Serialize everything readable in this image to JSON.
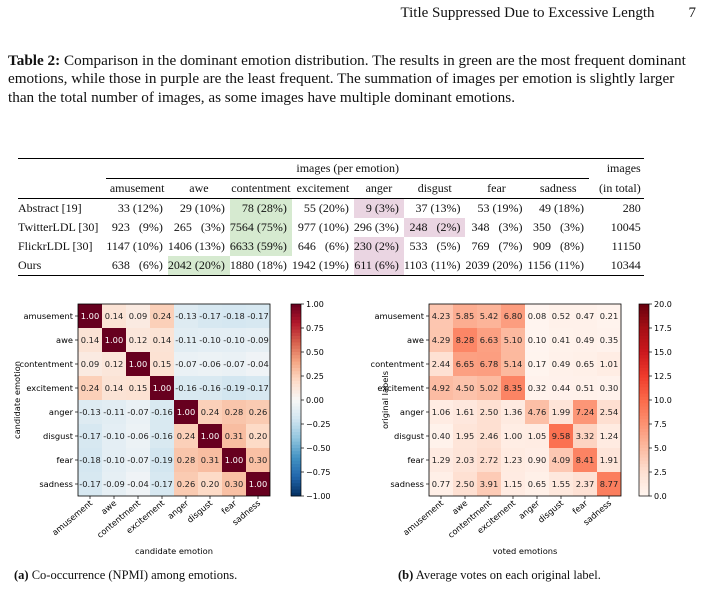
{
  "running_head": {
    "title": "Title Suppressed Due to Excessive Length",
    "page": "7"
  },
  "caption": {
    "label": "Table 2:",
    "text": "Comparison in the dominant emotion distribution. The results in green are the most frequent dominant emotions, while those in purple are the least frequent. The summation of images per emotion is slightly larger than the total number of images, as some images have multiple dominant emotions."
  },
  "table": {
    "group_header": "images (per emotion)",
    "total_header": [
      "images",
      "(in total)"
    ],
    "columns": [
      "amusement",
      "awe",
      "contentment",
      "excitement",
      "anger",
      "disgust",
      "fear",
      "sadness"
    ],
    "rows": [
      {
        "label": "Abstract [19]",
        "cells": [
          [
            "33",
            "(12%)"
          ],
          [
            "29",
            "(10%)"
          ],
          [
            "78",
            "(28%)"
          ],
          [
            "55",
            "(20%)"
          ],
          [
            "9",
            "(3%)"
          ],
          [
            "37",
            "(13%)"
          ],
          [
            "53",
            "(19%)"
          ],
          [
            "49",
            "(18%)"
          ]
        ],
        "total": "280",
        "green": 2,
        "purple": 4
      },
      {
        "label": "TwitterLDL [30]",
        "cells": [
          [
            "923",
            "(9%)"
          ],
          [
            "265",
            "(3%)"
          ],
          [
            "7564",
            "(75%)"
          ],
          [
            "977",
            "(10%)"
          ],
          [
            "296",
            "(3%)"
          ],
          [
            "248",
            "(2%)"
          ],
          [
            "348",
            "(3%)"
          ],
          [
            "350",
            "(3%)"
          ]
        ],
        "total": "10045",
        "green": 2,
        "purple": 5
      },
      {
        "label": "FlickrLDL [30]",
        "cells": [
          [
            "1147",
            "(10%)"
          ],
          [
            "1406",
            "(13%)"
          ],
          [
            "6633",
            "(59%)"
          ],
          [
            "646",
            "(6%)"
          ],
          [
            "230",
            "(2%)"
          ],
          [
            "533",
            "(5%)"
          ],
          [
            "769",
            "(7%)"
          ],
          [
            "909",
            "(8%)"
          ]
        ],
        "total": "11150",
        "green": 2,
        "purple": 4
      },
      {
        "label": "Ours",
        "cells": [
          [
            "638",
            "(6%)"
          ],
          [
            "2042",
            "(20%)"
          ],
          [
            "1880",
            "(18%)"
          ],
          [
            "1942",
            "(19%)"
          ],
          [
            "611",
            "(6%)"
          ],
          [
            "1103",
            "(11%)"
          ],
          [
            "2039",
            "(20%)"
          ],
          [
            "1156",
            "(11%)"
          ]
        ],
        "total": "10344",
        "green": 1,
        "purple": 4
      }
    ]
  },
  "chart_data": [
    {
      "type": "heatmap",
      "xlabel": "candidate emotion",
      "ylabel": "candidate emotion",
      "x": [
        "amusement",
        "awe",
        "contentment",
        "excitement",
        "anger",
        "disgust",
        "fear",
        "sadness"
      ],
      "y": [
        "amusement",
        "awe",
        "contentment",
        "excitement",
        "anger",
        "disgust",
        "fear",
        "sadness"
      ],
      "values": [
        [
          1.0,
          0.14,
          0.09,
          0.24,
          -0.13,
          -0.17,
          -0.18,
          -0.17
        ],
        [
          0.14,
          1.0,
          0.12,
          0.14,
          -0.11,
          -0.1,
          -0.1,
          -0.09
        ],
        [
          0.09,
          0.12,
          1.0,
          0.15,
          -0.07,
          -0.06,
          -0.07,
          -0.04
        ],
        [
          0.24,
          0.14,
          0.15,
          1.0,
          -0.16,
          -0.16,
          -0.19,
          -0.17
        ],
        [
          -0.13,
          -0.11,
          -0.07,
          -0.16,
          1.0,
          0.24,
          0.28,
          0.26
        ],
        [
          -0.17,
          -0.1,
          -0.06,
          -0.16,
          0.24,
          1.0,
          0.31,
          0.2
        ],
        [
          -0.18,
          -0.1,
          -0.07,
          -0.19,
          0.28,
          0.31,
          1.0,
          0.3
        ],
        [
          -0.17,
          -0.09,
          -0.04,
          -0.17,
          0.26,
          0.2,
          0.3,
          1.0
        ]
      ],
      "colorbar": {
        "range": [
          -1.0,
          1.0
        ],
        "ticks": [
          "1.00",
          "0.75",
          "0.50",
          "0.25",
          "0.00",
          "−0.25",
          "−0.50",
          "−0.75",
          "−1.00"
        ],
        "colormap": "RdBu_r"
      },
      "subcaption": {
        "label": "(a)",
        "text": "Co-occurrence (NPMI) among emotions."
      }
    },
    {
      "type": "heatmap",
      "xlabel": "voted emotions",
      "ylabel": "original labels",
      "x": [
        "amusement",
        "awe",
        "contentment",
        "excitement",
        "anger",
        "disgust",
        "fear",
        "sadness"
      ],
      "y": [
        "amusement",
        "awe",
        "contentment",
        "excitement",
        "anger",
        "disgust",
        "fear",
        "sadness"
      ],
      "values": [
        [
          4.23,
          5.85,
          5.42,
          6.8,
          0.08,
          0.52,
          0.47,
          0.21
        ],
        [
          4.29,
          8.28,
          6.63,
          5.1,
          0.1,
          0.41,
          0.49,
          0.35
        ],
        [
          2.44,
          6.65,
          6.78,
          5.14,
          0.17,
          0.49,
          0.65,
          1.01
        ],
        [
          4.92,
          4.5,
          5.02,
          8.35,
          0.32,
          0.44,
          0.51,
          0.3
        ],
        [
          1.06,
          1.61,
          2.5,
          1.36,
          4.76,
          1.99,
          7.24,
          2.54
        ],
        [
          0.4,
          1.95,
          2.46,
          1.0,
          1.05,
          9.58,
          3.32,
          1.24
        ],
        [
          1.29,
          2.03,
          2.72,
          1.23,
          0.9,
          4.09,
          8.41,
          1.91
        ],
        [
          0.77,
          2.5,
          3.91,
          1.15,
          0.65,
          1.55,
          2.37,
          8.77
        ]
      ],
      "colorbar": {
        "range": [
          0,
          20
        ],
        "ticks": [
          "20.0",
          "17.5",
          "15.0",
          "12.5",
          "10.0",
          "7.5",
          "5.0",
          "2.5",
          "0.0"
        ],
        "colormap": "Reds"
      },
      "subcaption": {
        "label": "(b)",
        "text": "Average votes on each original label."
      }
    }
  ]
}
